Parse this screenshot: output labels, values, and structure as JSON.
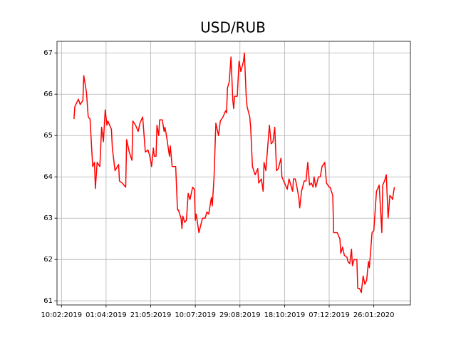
{
  "chart_data": {
    "type": "line",
    "title": "USD/RUB",
    "color": "#ff0000",
    "grid": true,
    "x": [
      "2019-02-24",
      "2019-02-25",
      "2019-03-01",
      "2019-03-03",
      "2019-03-06",
      "2019-03-07",
      "2019-03-10",
      "2019-03-12",
      "2019-03-14",
      "2019-03-17",
      "2019-03-19",
      "2019-03-20",
      "2019-03-22",
      "2019-03-25",
      "2019-03-27",
      "2019-03-29",
      "2019-03-31",
      "2019-04-02",
      "2019-04-03",
      "2019-04-07",
      "2019-04-08",
      "2019-04-11",
      "2019-04-15",
      "2019-04-16",
      "2019-04-19",
      "2019-04-23",
      "2019-04-24",
      "2019-04-27",
      "2019-04-30",
      "2019-05-01",
      "2019-05-04",
      "2019-05-07",
      "2019-05-09",
      "2019-05-12",
      "2019-05-15",
      "2019-05-18",
      "2019-05-20",
      "2019-05-22",
      "2019-05-24",
      "2019-05-25",
      "2019-05-27",
      "2019-05-28",
      "2019-05-30",
      "2019-05-31",
      "2019-06-03",
      "2019-06-05",
      "2019-06-06",
      "2019-06-08",
      "2019-06-11",
      "2019-06-12",
      "2019-06-14",
      "2019-06-18",
      "2019-06-20",
      "2019-06-21",
      "2019-06-24",
      "2019-06-25",
      "2019-06-26",
      "2019-06-28",
      "2019-06-30",
      "2019-07-02",
      "2019-07-04",
      "2019-07-07",
      "2019-07-09",
      "2019-07-10",
      "2019-07-11",
      "2019-07-14",
      "2019-07-18",
      "2019-07-21",
      "2019-07-23",
      "2019-07-25",
      "2019-07-28",
      "2019-07-29",
      "2019-07-31",
      "2019-08-02",
      "2019-08-03",
      "2019-08-05",
      "2019-08-07",
      "2019-08-10",
      "2019-08-13",
      "2019-08-14",
      "2019-08-15",
      "2019-08-17",
      "2019-08-19",
      "2019-08-21",
      "2019-08-22",
      "2019-08-23",
      "2019-08-26",
      "2019-08-28",
      "2019-08-30",
      "2019-09-02",
      "2019-09-03",
      "2019-09-05",
      "2019-09-06",
      "2019-09-09",
      "2019-09-10",
      "2019-09-12",
      "2019-09-15",
      "2019-09-18",
      "2019-09-19",
      "2019-09-22",
      "2019-09-24",
      "2019-09-25",
      "2019-09-27",
      "2019-10-01",
      "2019-10-03",
      "2019-10-05",
      "2019-10-07",
      "2019-10-09",
      "2019-10-11",
      "2019-10-14",
      "2019-10-15",
      "2019-10-18",
      "2019-10-21",
      "2019-10-23",
      "2019-10-27",
      "2019-10-28",
      "2019-10-30",
      "2019-10-31",
      "2019-11-03",
      "2019-11-04",
      "2019-11-06",
      "2019-11-09",
      "2019-11-11",
      "2019-11-13",
      "2019-11-15",
      "2019-11-17",
      "2019-11-19",
      "2019-11-20",
      "2019-11-22",
      "2019-11-25",
      "2019-11-27",
      "2019-11-29",
      "2019-12-02",
      "2019-12-04",
      "2019-12-07",
      "2019-12-08",
      "2019-12-11",
      "2019-12-12",
      "2019-12-16",
      "2019-12-19",
      "2019-12-20",
      "2019-12-22",
      "2019-12-24",
      "2019-12-27",
      "2019-12-28",
      "2019-12-30",
      "2020-01-01",
      "2020-01-02",
      "2020-01-04",
      "2020-01-07",
      "2020-01-08",
      "2020-01-10",
      "2020-01-12",
      "2020-01-14",
      "2020-01-16",
      "2020-01-18",
      "2020-01-20",
      "2020-01-21",
      "2020-01-24",
      "2020-01-26",
      "2020-01-29",
      "2020-02-01",
      "2020-02-04",
      "2020-02-05",
      "2020-02-07",
      "2020-02-09",
      "2020-02-11",
      "2020-02-13",
      "2020-02-15",
      "2020-02-16",
      "2020-02-18"
    ],
    "values": [
      65.4,
      65.7,
      65.88,
      65.75,
      65.85,
      66.45,
      66.05,
      65.45,
      65.4,
      64.25,
      64.35,
      63.72,
      64.35,
      64.25,
      65.2,
      64.85,
      65.62,
      65.25,
      65.35,
      65.15,
      64.7,
      64.15,
      64.3,
      63.9,
      63.85,
      63.75,
      64.9,
      64.6,
      64.4,
      65.35,
      65.25,
      65.1,
      65.3,
      65.45,
      64.6,
      64.65,
      64.5,
      64.25,
      64.7,
      64.5,
      64.5,
      65.25,
      65.0,
      65.38,
      65.38,
      65.1,
      65.2,
      64.95,
      64.5,
      64.75,
      64.25,
      64.25,
      63.2,
      63.2,
      63.0,
      62.75,
      63.05,
      62.9,
      62.95,
      63.6,
      63.45,
      63.75,
      63.7,
      62.95,
      63.1,
      62.65,
      63.0,
      63.0,
      63.15,
      63.1,
      63.5,
      63.3,
      64.0,
      65.3,
      65.2,
      65.0,
      65.35,
      65.45,
      65.6,
      65.55,
      66.15,
      66.3,
      66.9,
      65.85,
      65.65,
      65.95,
      65.95,
      66.8,
      66.55,
      66.8,
      67.0,
      65.95,
      65.7,
      65.45,
      65.2,
      64.25,
      64.05,
      64.2,
      63.85,
      63.95,
      63.65,
      64.35,
      64.15,
      65.25,
      64.8,
      64.85,
      65.2,
      64.15,
      64.2,
      64.45,
      64.0,
      63.85,
      63.7,
      63.95,
      63.65,
      63.95,
      63.95,
      63.85,
      63.5,
      63.25,
      63.65,
      63.9,
      63.9,
      64.35,
      63.8,
      63.85,
      63.75,
      64.0,
      63.75,
      64.0,
      64.0,
      64.25,
      64.35,
      63.85,
      63.75,
      63.75,
      63.55,
      62.65,
      62.65,
      62.5,
      62.15,
      62.3,
      62.1,
      62.05,
      61.95,
      61.9,
      62.25,
      61.85,
      62.0,
      62.0,
      61.3,
      61.3,
      61.2,
      61.6,
      61.4,
      61.5,
      61.95,
      61.8,
      62.65,
      62.7,
      63.65,
      63.8,
      62.65,
      63.8,
      63.9,
      64.05,
      63.0,
      63.55,
      63.5,
      63.45,
      63.75
    ],
    "xlim": [
      "2019-02-05",
      "2020-03-07"
    ],
    "xticks": [
      {
        "value": "2019-02-10",
        "label": "10:02:2019"
      },
      {
        "value": "2019-04-01",
        "label": "01:04:2019"
      },
      {
        "value": "2019-05-21",
        "label": "21:05:2019"
      },
      {
        "value": "2019-07-10",
        "label": "10:07:2019"
      },
      {
        "value": "2019-08-29",
        "label": "29:08:2019"
      },
      {
        "value": "2019-10-18",
        "label": "18:10:2019"
      },
      {
        "value": "2019-12-07",
        "label": "07:12:2019"
      },
      {
        "value": "2020-01-26",
        "label": "26:01:2020"
      }
    ],
    "ylim": [
      60.9,
      67.28
    ],
    "yticks": [
      61,
      62,
      63,
      64,
      65,
      66,
      67
    ]
  }
}
